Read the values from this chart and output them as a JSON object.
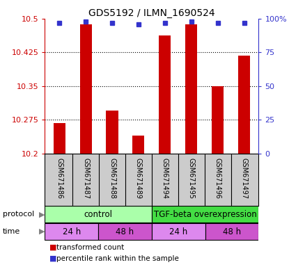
{
  "title": "GDS5192 / ILMN_1690524",
  "samples": [
    "GSM671486",
    "GSM671487",
    "GSM671488",
    "GSM671489",
    "GSM671494",
    "GSM671495",
    "GSM671496",
    "GSM671497"
  ],
  "bar_values": [
    10.268,
    10.488,
    10.295,
    10.24,
    10.463,
    10.488,
    10.35,
    10.418
  ],
  "dot_values": [
    97,
    98,
    97,
    96,
    97,
    98,
    97,
    97
  ],
  "ylim_left": [
    10.2,
    10.5
  ],
  "ylim_right": [
    0,
    100
  ],
  "yticks_left": [
    10.2,
    10.275,
    10.35,
    10.425,
    10.5
  ],
  "yticks_right": [
    0,
    25,
    50,
    75,
    100
  ],
  "ytick_labels_left": [
    "10.2",
    "10.275",
    "10.35",
    "10.425",
    "10.5"
  ],
  "ytick_labels_right": [
    "0",
    "25",
    "50",
    "75",
    "100%"
  ],
  "bar_color": "#cc0000",
  "dot_color": "#3333cc",
  "bar_bottom": 10.2,
  "protocol_labels": [
    "control",
    "TGF-beta overexpression"
  ],
  "protocol_colors": [
    "#aaffaa",
    "#44dd44"
  ],
  "time_labels": [
    "24 h",
    "48 h",
    "24 h",
    "48 h"
  ],
  "time_colors": [
    "#dd88ee",
    "#cc55cc",
    "#dd88ee",
    "#cc55cc"
  ],
  "legend_items": [
    "transformed count",
    "percentile rank within the sample"
  ],
  "legend_colors": [
    "#cc0000",
    "#3333cc"
  ],
  "background_color": "#ffffff",
  "sample_label_bg": "#cccccc",
  "title_fontsize": 10
}
